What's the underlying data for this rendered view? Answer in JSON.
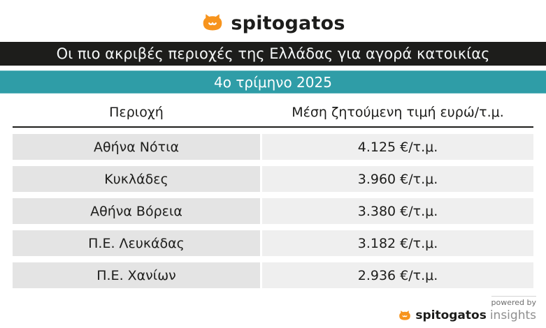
{
  "brand": {
    "logo_text": "spitogatos",
    "accent_orange": "#f7941d",
    "accent_teal": "#2f9da7",
    "banner_black": "#1d1d1b"
  },
  "header": {
    "title": "Οι πιο ακριβές περιοχές της Ελλάδας για αγορά κατοικίας",
    "subtitle": "4ο τρίμηνο 2025"
  },
  "table": {
    "columns": [
      "Περιοχή",
      "Μέση ζητούμενη τιμή ευρώ/τ.μ."
    ],
    "rows": [
      {
        "area": "Αθήνα Νότια",
        "price": "4.125 €/τ.μ."
      },
      {
        "area": "Κυκλάδες",
        "price": "3.960 €/τ.μ."
      },
      {
        "area": "Αθήνα Βόρεια",
        "price": "3.380 €/τ.μ."
      },
      {
        "area": "Π.Ε. Λευκάδας",
        "price": "3.182 €/τ.μ."
      },
      {
        "area": "Π.Ε. Χανίων",
        "price": "2.936 €/τ.μ."
      }
    ]
  },
  "chart_data": {
    "type": "table",
    "title": "Οι πιο ακριβές περιοχές της Ελλάδας για αγορά κατοικίας",
    "subtitle": "4ο τρίμηνο 2025",
    "columns": [
      "Περιοχή",
      "Μέση ζητούμενη τιμή ευρώ/τ.μ."
    ],
    "categories": [
      "Αθήνα Νότια",
      "Κυκλάδες",
      "Αθήνα Βόρεια",
      "Π.Ε. Λευκάδας",
      "Π.Ε. Χανίων"
    ],
    "values_eur_per_sqm": [
      4125,
      3960,
      3380,
      3182,
      2936
    ]
  },
  "footer": {
    "powered_by": "powered by",
    "logo_text": "spitogatos",
    "logo_suffix": "insights"
  }
}
